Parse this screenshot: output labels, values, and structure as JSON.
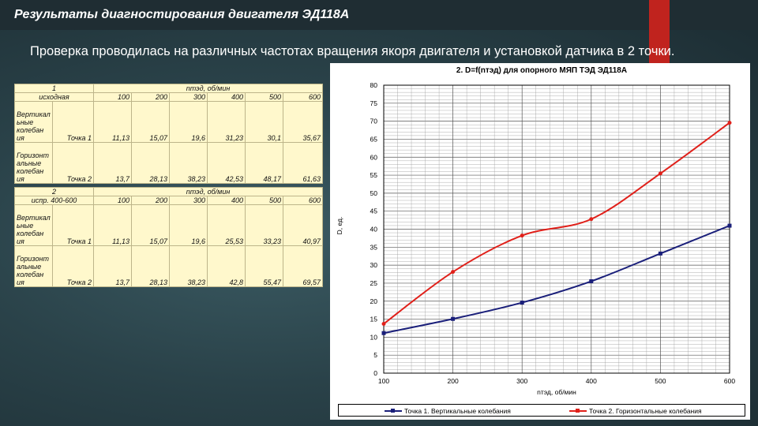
{
  "header": {
    "title": "Результаты диагностирования двигателя ЭД118А",
    "accent_color": "#c0231e"
  },
  "intro_text": "Проверка проводилась на различных частотах вращения якоря двигателя и установкой датчика в 2 точки.",
  "tables": [
    {
      "number": "1",
      "subtitle": "исходная",
      "rpm_header": "nтэд, об/мин",
      "rpm": [
        "100",
        "200",
        "300",
        "400",
        "500",
        "600"
      ],
      "rows": [
        {
          "group": "Вертикал ьные колебан ия",
          "point": "Точка 1",
          "values": [
            "11,13",
            "15,07",
            "19,6",
            "31,23",
            "30,1",
            "35,67"
          ]
        },
        {
          "group": "Горизонт альные колебан ия",
          "point": "Точка 2",
          "values": [
            "13,7",
            "28,13",
            "38,23",
            "42,53",
            "48,17",
            "61,63"
          ]
        }
      ]
    },
    {
      "number": "2",
      "subtitle": "испр. 400-600",
      "rpm_header": "nтэд, об/мин",
      "rpm": [
        "100",
        "200",
        "300",
        "400",
        "500",
        "600"
      ],
      "rows": [
        {
          "group": "Вертикал ьные колебан ия",
          "point": "Точка 1",
          "values": [
            "11,13",
            "15,07",
            "19,6",
            "25,53",
            "33,23",
            "40,97"
          ]
        },
        {
          "group": "Горизонт альные колебан ия",
          "point": "Точка 2",
          "values": [
            "13,7",
            "28,13",
            "38,23",
            "42,8",
            "55,47",
            "69,57"
          ]
        }
      ]
    }
  ],
  "chart_data": {
    "type": "line",
    "title": "2. D=f(nтэд) для опорного МЯП ТЭД ЭД118А",
    "xlabel": "nтэд, об/мин",
    "ylabel": "D, ед.",
    "x": [
      100,
      200,
      300,
      400,
      500,
      600
    ],
    "xlim": [
      100,
      600
    ],
    "ylim": [
      0,
      80
    ],
    "yticks": [
      0,
      5,
      10,
      15,
      20,
      25,
      30,
      35,
      40,
      45,
      50,
      55,
      60,
      65,
      70,
      75,
      80
    ],
    "grid": true,
    "legend_position": "bottom",
    "series": [
      {
        "name": "Точка 1. Вертикальные колебания",
        "color": "#1a1f7a",
        "values": [
          11.13,
          15.07,
          19.6,
          25.53,
          33.23,
          40.97
        ]
      },
      {
        "name": "Точка 2. Горизонтальные колебания",
        "color": "#e0201a",
        "values": [
          13.7,
          28.13,
          38.23,
          42.8,
          55.47,
          69.57
        ]
      }
    ]
  }
}
